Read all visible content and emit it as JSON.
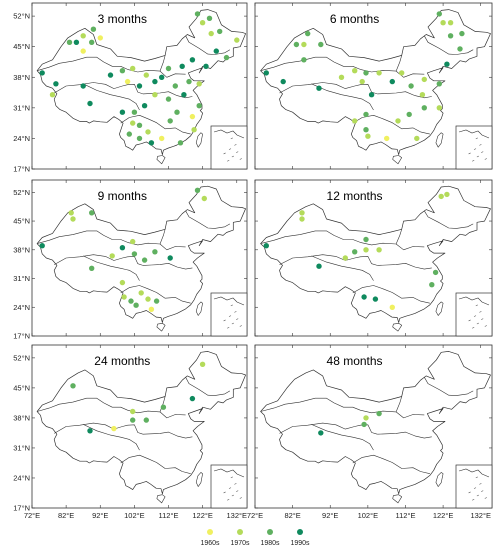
{
  "figure": {
    "lat_ticks": [
      "52°N",
      "45°N",
      "38°N",
      "31°N",
      "24°N",
      "17°N"
    ],
    "lon_ticks": [
      "72°E",
      "82°E",
      "92°E",
      "102°E",
      "112°E",
      "122°E",
      "132°E"
    ],
    "lon_range": [
      72,
      135
    ],
    "lat_range": [
      17,
      55
    ]
  },
  "decades": [
    {
      "label": "1960s",
      "color": "#f0f060"
    },
    {
      "label": "1970s",
      "color": "#b4db5a"
    },
    {
      "label": "1980s",
      "color": "#5fb060"
    },
    {
      "label": "1990s",
      "color": "#0f8a5e"
    }
  ],
  "panels": [
    {
      "title": "3 months",
      "points": [
        {
          "lon": 75,
          "lat": 39,
          "d": 3
        },
        {
          "lon": 79,
          "lat": 36.5,
          "d": 3
        },
        {
          "lon": 83,
          "lat": 46,
          "d": 2
        },
        {
          "lon": 85,
          "lat": 46,
          "d": 3
        },
        {
          "lon": 87,
          "lat": 47.5,
          "d": 1
        },
        {
          "lon": 87,
          "lat": 44,
          "d": 0
        },
        {
          "lon": 89.5,
          "lat": 46,
          "d": 2
        },
        {
          "lon": 78,
          "lat": 34,
          "d": 1
        },
        {
          "lon": 87,
          "lat": 36,
          "d": 3
        },
        {
          "lon": 89,
          "lat": 32,
          "d": 3
        },
        {
          "lon": 95,
          "lat": 38.5,
          "d": 3
        },
        {
          "lon": 98.5,
          "lat": 39.5,
          "d": 2
        },
        {
          "lon": 101.5,
          "lat": 40,
          "d": 1
        },
        {
          "lon": 100,
          "lat": 37,
          "d": 0
        },
        {
          "lon": 103.5,
          "lat": 36,
          "d": 3
        },
        {
          "lon": 105.5,
          "lat": 38.5,
          "d": 1
        },
        {
          "lon": 108,
          "lat": 37,
          "d": 3
        },
        {
          "lon": 110,
          "lat": 38,
          "d": 3
        },
        {
          "lon": 112,
          "lat": 40,
          "d": 2
        },
        {
          "lon": 116,
          "lat": 40.5,
          "d": 3
        },
        {
          "lon": 119,
          "lat": 42,
          "d": 3
        },
        {
          "lon": 114,
          "lat": 36,
          "d": 2
        },
        {
          "lon": 118,
          "lat": 37,
          "d": 2
        },
        {
          "lon": 121,
          "lat": 36.5,
          "d": 1
        },
        {
          "lon": 116.5,
          "lat": 34,
          "d": 3
        },
        {
          "lon": 121,
          "lat": 31.5,
          "d": 2
        },
        {
          "lon": 119,
          "lat": 29,
          "d": 0
        },
        {
          "lon": 112,
          "lat": 33,
          "d": 2
        },
        {
          "lon": 108,
          "lat": 34,
          "d": 1
        },
        {
          "lon": 105,
          "lat": 31.5,
          "d": 3
        },
        {
          "lon": 102,
          "lat": 30,
          "d": 2
        },
        {
          "lon": 98.5,
          "lat": 30,
          "d": 3
        },
        {
          "lon": 101.5,
          "lat": 27.5,
          "d": 1
        },
        {
          "lon": 103.5,
          "lat": 27,
          "d": 2
        },
        {
          "lon": 100.5,
          "lat": 25,
          "d": 2
        },
        {
          "lon": 103.5,
          "lat": 24,
          "d": 2
        },
        {
          "lon": 106,
          "lat": 25.5,
          "d": 1
        },
        {
          "lon": 107,
          "lat": 23,
          "d": 3
        },
        {
          "lon": 110,
          "lat": 24,
          "d": 0
        },
        {
          "lon": 112.5,
          "lat": 28,
          "d": 2
        },
        {
          "lon": 114.5,
          "lat": 30,
          "d": 2
        },
        {
          "lon": 119.5,
          "lat": 26,
          "d": 1
        },
        {
          "lon": 115.5,
          "lat": 23,
          "d": 2
        },
        {
          "lon": 120.5,
          "lat": 52.5,
          "d": 2
        },
        {
          "lon": 122,
          "lat": 50.5,
          "d": 1
        },
        {
          "lon": 124,
          "lat": 51.5,
          "d": 2
        },
        {
          "lon": 124.5,
          "lat": 48,
          "d": 1
        },
        {
          "lon": 127,
          "lat": 48.5,
          "d": 2
        },
        {
          "lon": 132,
          "lat": 46.5,
          "d": 1
        },
        {
          "lon": 126,
          "lat": 44,
          "d": 3
        },
        {
          "lon": 129,
          "lat": 42.5,
          "d": 2
        },
        {
          "lon": 123,
          "lat": 40.5,
          "d": 3
        },
        {
          "lon": 92,
          "lat": 47,
          "d": 0
        },
        {
          "lon": 90,
          "lat": 49,
          "d": 2
        }
      ]
    },
    {
      "title": "6 months",
      "points": [
        {
          "lon": 75,
          "lat": 39,
          "d": 3
        },
        {
          "lon": 79.5,
          "lat": 37,
          "d": 3
        },
        {
          "lon": 83,
          "lat": 45.5,
          "d": 2
        },
        {
          "lon": 85,
          "lat": 45.5,
          "d": 1
        },
        {
          "lon": 86,
          "lat": 48,
          "d": 2
        },
        {
          "lon": 89.5,
          "lat": 45.5,
          "d": 2
        },
        {
          "lon": 85,
          "lat": 42,
          "d": 2
        },
        {
          "lon": 89,
          "lat": 35.5,
          "d": 3
        },
        {
          "lon": 95,
          "lat": 38,
          "d": 1
        },
        {
          "lon": 98.5,
          "lat": 39.5,
          "d": 1
        },
        {
          "lon": 100.5,
          "lat": 37,
          "d": 1
        },
        {
          "lon": 101.5,
          "lat": 39,
          "d": 2
        },
        {
          "lon": 105,
          "lat": 39,
          "d": 1
        },
        {
          "lon": 108.5,
          "lat": 37,
          "d": 3
        },
        {
          "lon": 111,
          "lat": 39,
          "d": 1
        },
        {
          "lon": 113.5,
          "lat": 36,
          "d": 2
        },
        {
          "lon": 117,
          "lat": 37.5,
          "d": 1
        },
        {
          "lon": 121,
          "lat": 36.5,
          "d": 2
        },
        {
          "lon": 116.5,
          "lat": 34,
          "d": 1
        },
        {
          "lon": 103,
          "lat": 34,
          "d": 3
        },
        {
          "lon": 101.5,
          "lat": 29.5,
          "d": 2
        },
        {
          "lon": 98.5,
          "lat": 28,
          "d": 1
        },
        {
          "lon": 101.5,
          "lat": 26,
          "d": 2
        },
        {
          "lon": 102,
          "lat": 24.5,
          "d": 1
        },
        {
          "lon": 107,
          "lat": 24,
          "d": 0
        },
        {
          "lon": 110,
          "lat": 28,
          "d": 1
        },
        {
          "lon": 115,
          "lat": 24,
          "d": 1
        },
        {
          "lon": 113,
          "lat": 29.5,
          "d": 2
        },
        {
          "lon": 117,
          "lat": 31,
          "d": 2
        },
        {
          "lon": 121,
          "lat": 31,
          "d": 1
        },
        {
          "lon": 121,
          "lat": 52.5,
          "d": 2
        },
        {
          "lon": 122,
          "lat": 50.5,
          "d": 1
        },
        {
          "lon": 124,
          "lat": 50.5,
          "d": 1
        },
        {
          "lon": 124,
          "lat": 47.5,
          "d": 2
        },
        {
          "lon": 126.5,
          "lat": 44.5,
          "d": 2
        },
        {
          "lon": 127,
          "lat": 48,
          "d": 2
        },
        {
          "lon": 123,
          "lat": 41,
          "d": 3
        }
      ]
    },
    {
      "title": "9 months",
      "points": [
        {
          "lon": 75,
          "lat": 39,
          "d": 3
        },
        {
          "lon": 83.5,
          "lat": 47,
          "d": 1
        },
        {
          "lon": 84,
          "lat": 45.5,
          "d": 1
        },
        {
          "lon": 89.5,
          "lat": 47,
          "d": 2
        },
        {
          "lon": 89.5,
          "lat": 33.5,
          "d": 2
        },
        {
          "lon": 95.5,
          "lat": 36.5,
          "d": 1
        },
        {
          "lon": 98.5,
          "lat": 38.5,
          "d": 3
        },
        {
          "lon": 101.5,
          "lat": 40,
          "d": 1
        },
        {
          "lon": 102,
          "lat": 37,
          "d": 2
        },
        {
          "lon": 105,
          "lat": 35.5,
          "d": 2
        },
        {
          "lon": 108,
          "lat": 37.5,
          "d": 2
        },
        {
          "lon": 112.5,
          "lat": 36,
          "d": 3
        },
        {
          "lon": 98.5,
          "lat": 30,
          "d": 1
        },
        {
          "lon": 99,
          "lat": 26.5,
          "d": 1
        },
        {
          "lon": 101,
          "lat": 25.5,
          "d": 2
        },
        {
          "lon": 102.5,
          "lat": 24.5,
          "d": 2
        },
        {
          "lon": 106,
          "lat": 26,
          "d": 1
        },
        {
          "lon": 104,
          "lat": 27.5,
          "d": 1
        },
        {
          "lon": 108.5,
          "lat": 25.5,
          "d": 2
        },
        {
          "lon": 107,
          "lat": 23.5,
          "d": 0
        },
        {
          "lon": 120.5,
          "lat": 52.5,
          "d": 2
        },
        {
          "lon": 122.5,
          "lat": 50.5,
          "d": 1
        }
      ]
    },
    {
      "title": "12 months",
      "points": [
        {
          "lon": 75,
          "lat": 39,
          "d": 3
        },
        {
          "lon": 84.5,
          "lat": 47,
          "d": 1
        },
        {
          "lon": 84.5,
          "lat": 45.5,
          "d": 1
        },
        {
          "lon": 89,
          "lat": 34,
          "d": 3
        },
        {
          "lon": 96,
          "lat": 36,
          "d": 1
        },
        {
          "lon": 98.5,
          "lat": 37.5,
          "d": 2
        },
        {
          "lon": 101.5,
          "lat": 40.5,
          "d": 2
        },
        {
          "lon": 101.5,
          "lat": 38,
          "d": 1
        },
        {
          "lon": 105,
          "lat": 38,
          "d": 1
        },
        {
          "lon": 101,
          "lat": 26.5,
          "d": 3
        },
        {
          "lon": 104,
          "lat": 26,
          "d": 3
        },
        {
          "lon": 108.5,
          "lat": 24,
          "d": 0
        },
        {
          "lon": 120,
          "lat": 32.5,
          "d": 2
        },
        {
          "lon": 119,
          "lat": 29.5,
          "d": 2
        },
        {
          "lon": 121.5,
          "lat": 51,
          "d": 1
        },
        {
          "lon": 123,
          "lat": 51.5,
          "d": 1
        }
      ]
    },
    {
      "title": "24 months",
      "points": [
        {
          "lon": 84,
          "lat": 45.5,
          "d": 2
        },
        {
          "lon": 89,
          "lat": 35,
          "d": 3
        },
        {
          "lon": 96,
          "lat": 35.5,
          "d": 0
        },
        {
          "lon": 101.5,
          "lat": 39.5,
          "d": 1
        },
        {
          "lon": 101.5,
          "lat": 37.5,
          "d": 2
        },
        {
          "lon": 105.5,
          "lat": 37.5,
          "d": 2
        },
        {
          "lon": 110.5,
          "lat": 40.5,
          "d": 2
        },
        {
          "lon": 119,
          "lat": 42.5,
          "d": 3
        },
        {
          "lon": 122,
          "lat": 50.5,
          "d": 1
        }
      ]
    },
    {
      "title": "48 months",
      "points": [
        {
          "lon": 89.5,
          "lat": 34.5,
          "d": 3
        },
        {
          "lon": 101.5,
          "lat": 38,
          "d": 1
        },
        {
          "lon": 101,
          "lat": 36.5,
          "d": 2
        },
        {
          "lon": 105,
          "lat": 39,
          "d": 2
        }
      ]
    }
  ]
}
